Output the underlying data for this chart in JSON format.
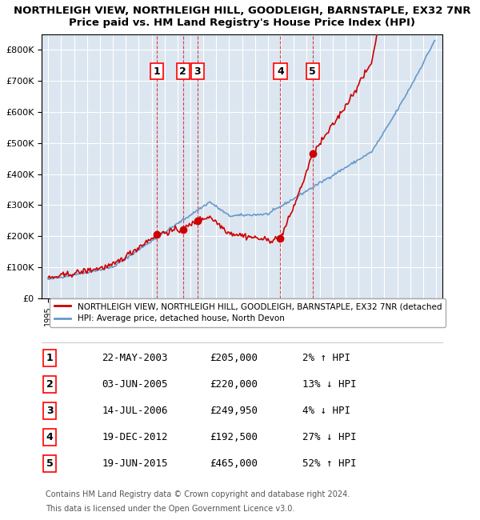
{
  "title1": "NORTHLEIGH VIEW, NORTHLEIGH HILL, GOODLEIGH, BARNSTAPLE, EX32 7NR",
  "title2": "Price paid vs. HM Land Registry's House Price Index (HPI)",
  "background_color": "#dce6f0",
  "plot_bg_color": "#dce6f0",
  "line1_color": "#cc0000",
  "line2_color": "#6699cc",
  "grid_color": "#ffffff",
  "transactions": [
    {
      "num": 1,
      "date": "22-MAY-2003",
      "price": 205000,
      "pct": "2%",
      "dir": "↑",
      "year": 2003.38
    },
    {
      "num": 2,
      "date": "03-JUN-2005",
      "price": 220000,
      "pct": "13%",
      "dir": "↓",
      "year": 2005.42
    },
    {
      "num": 3,
      "date": "14-JUL-2006",
      "price": 249950,
      "pct": "4%",
      "dir": "↓",
      "year": 2006.53
    },
    {
      "num": 4,
      "date": "19-DEC-2012",
      "price": 192500,
      "pct": "27%",
      "dir": "↓",
      "year": 2012.96
    },
    {
      "num": 5,
      "date": "19-JUN-2015",
      "price": 465000,
      "pct": "52%",
      "dir": "↑",
      "year": 2015.46
    }
  ],
  "legend_line1": "NORTHLEIGH VIEW, NORTHLEIGH HILL, GOODLEIGH, BARNSTAPLE, EX32 7NR (detached",
  "legend_line2": "HPI: Average price, detached house, North Devon",
  "footer1": "Contains HM Land Registry data © Crown copyright and database right 2024.",
  "footer2": "This data is licensed under the Open Government Licence v3.0.",
  "ylim": [
    0,
    850000
  ],
  "xlim_start": 1994.5,
  "xlim_end": 2025.5
}
